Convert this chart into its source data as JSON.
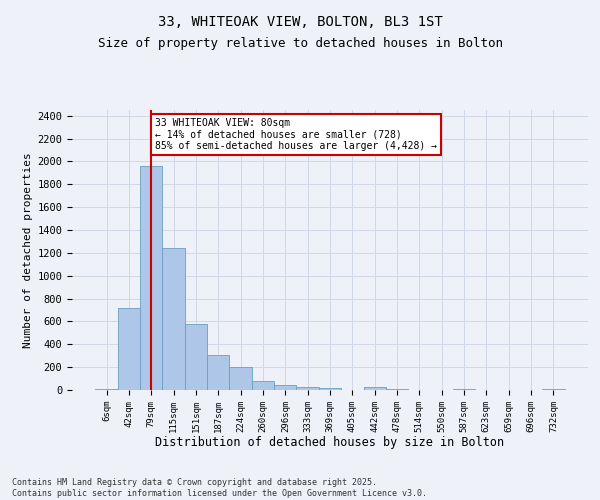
{
  "title": "33, WHITEOAK VIEW, BOLTON, BL3 1ST",
  "subtitle": "Size of property relative to detached houses in Bolton",
  "xlabel": "Distribution of detached houses by size in Bolton",
  "ylabel": "Number of detached properties",
  "bar_labels": [
    "6sqm",
    "42sqm",
    "79sqm",
    "115sqm",
    "151sqm",
    "187sqm",
    "224sqm",
    "260sqm",
    "296sqm",
    "333sqm",
    "369sqm",
    "405sqm",
    "442sqm",
    "478sqm",
    "514sqm",
    "550sqm",
    "587sqm",
    "623sqm",
    "659sqm",
    "696sqm",
    "732sqm"
  ],
  "bar_values": [
    10,
    720,
    1960,
    1240,
    580,
    305,
    200,
    75,
    40,
    30,
    15,
    0,
    30,
    5,
    0,
    0,
    5,
    0,
    0,
    0,
    5
  ],
  "bar_color": "#aec6e8",
  "bar_edge_color": "#6a9fc0",
  "vline_x": 2,
  "vline_color": "#cc0000",
  "annotation_text": "33 WHITEOAK VIEW: 80sqm\n← 14% of detached houses are smaller (728)\n85% of semi-detached houses are larger (4,428) →",
  "annotation_box_color": "#ffffff",
  "annotation_box_edge": "#cc0000",
  "ylim": [
    0,
    2450
  ],
  "yticks": [
    0,
    200,
    400,
    600,
    800,
    1000,
    1200,
    1400,
    1600,
    1800,
    2000,
    2200,
    2400
  ],
  "grid_color": "#d0d8e8",
  "bg_color": "#eef2f8",
  "footer_text": "Contains HM Land Registry data © Crown copyright and database right 2025.\nContains public sector information licensed under the Open Government Licence v3.0.",
  "title_fontsize": 10,
  "subtitle_fontsize": 9,
  "xlabel_fontsize": 8.5,
  "ylabel_fontsize": 8
}
